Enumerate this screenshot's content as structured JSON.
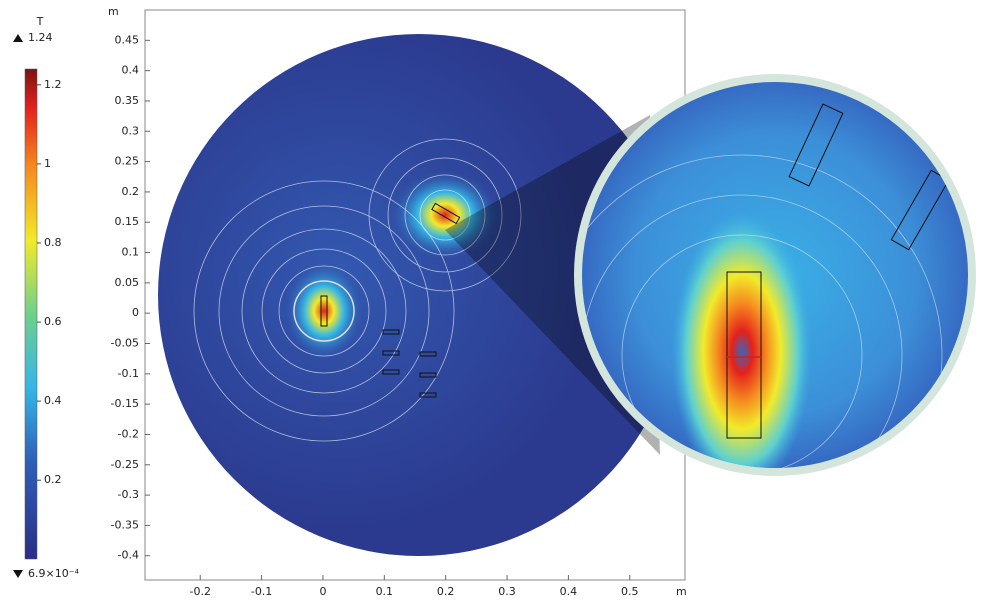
{
  "chart_data": {
    "type": "field",
    "xlim": [
      -0.29,
      0.59
    ],
    "ylim": [
      -0.44,
      0.5
    ],
    "xticks": [
      -0.2,
      -0.1,
      0,
      0.1,
      0.2,
      0.3,
      0.4,
      0.5
    ],
    "yticks": [
      -0.4,
      -0.35,
      -0.3,
      -0.25,
      -0.2,
      -0.15,
      -0.1,
      -0.05,
      0,
      0.05,
      0.1,
      0.15,
      0.2,
      0.25,
      0.3,
      0.35,
      0.4,
      0.45
    ],
    "x_unit": "m",
    "y_unit": "m",
    "colorbar": {
      "unit": "T",
      "max": 1.24,
      "min": {
        "value": 0.00069,
        "label": "6.9×10⁻⁴"
      },
      "ticks": [
        0.2,
        0.4,
        0.6,
        0.8,
        1,
        1.2
      ]
    }
  }
}
